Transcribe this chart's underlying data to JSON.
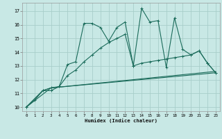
{
  "xlabel": "Humidex (Indice chaleur)",
  "xlim": [
    -0.5,
    23.5
  ],
  "ylim": [
    9.7,
    17.6
  ],
  "yticks": [
    10,
    11,
    12,
    13,
    14,
    15,
    16,
    17
  ],
  "xticks": [
    0,
    1,
    2,
    3,
    4,
    5,
    6,
    7,
    8,
    9,
    10,
    11,
    12,
    13,
    14,
    15,
    16,
    17,
    18,
    19,
    20,
    21,
    22,
    23
  ],
  "bg_color": "#c8e8e5",
  "grid_color": "#a8ceca",
  "line_color": "#1a6b5a",
  "curves": [
    {
      "x": [
        0,
        1,
        2,
        3,
        4,
        5,
        6,
        7,
        8,
        9,
        10,
        11,
        12,
        13,
        14,
        15,
        16,
        17,
        18,
        19,
        20,
        21,
        22,
        23
      ],
      "y": [
        10.0,
        10.5,
        11.2,
        11.2,
        11.5,
        13.1,
        13.3,
        16.1,
        16.1,
        15.8,
        14.8,
        15.8,
        16.2,
        13.0,
        17.2,
        16.2,
        16.3,
        12.9,
        16.5,
        14.2,
        13.8,
        14.1,
        13.2,
        12.5
      ],
      "marker": true
    },
    {
      "x": [
        0,
        2,
        3,
        4,
        5,
        6,
        7,
        8,
        9,
        10,
        11,
        12,
        13,
        14,
        15,
        16,
        17,
        18,
        19,
        20,
        21,
        22,
        23
      ],
      "y": [
        10.0,
        11.2,
        11.4,
        11.5,
        12.3,
        12.7,
        13.3,
        13.8,
        14.3,
        14.7,
        15.0,
        15.3,
        13.0,
        13.2,
        13.3,
        13.4,
        13.5,
        13.6,
        13.7,
        13.8,
        14.1,
        13.2,
        12.5
      ],
      "marker": true
    },
    {
      "x": [
        0,
        2,
        3,
        23
      ],
      "y": [
        10.0,
        11.2,
        11.4,
        12.6
      ],
      "marker": false
    },
    {
      "x": [
        0,
        3,
        23
      ],
      "y": [
        10.0,
        11.4,
        12.5
      ],
      "marker": false
    }
  ]
}
